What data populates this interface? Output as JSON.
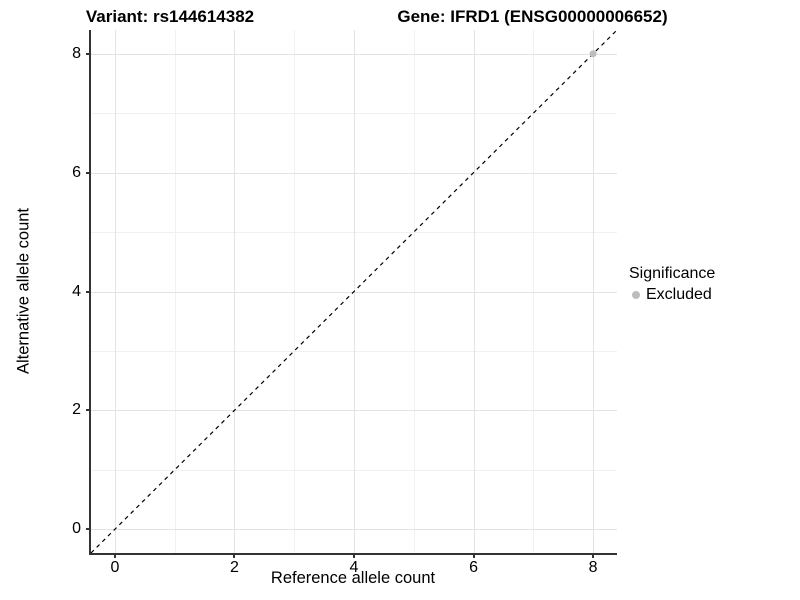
{
  "chart_data": {
    "type": "scatter",
    "title_left": "Variant: rs144614382",
    "title_right": "Gene: IFRD1 (ENSG00000006652)",
    "xlabel": "Reference allele count",
    "ylabel": "Alternative allele count",
    "xlim": [
      -0.4,
      8.4
    ],
    "ylim": [
      -0.4,
      8.4
    ],
    "major_ticks": [
      0,
      2,
      4,
      6,
      8
    ],
    "minor_gridlines": [
      1,
      3,
      5,
      7
    ],
    "grid": "major and minor gridlines, white panel background",
    "axis_line_color": "#333333",
    "legend": {
      "title": "Significance",
      "position": "right",
      "items": [
        {
          "label": "Excluded",
          "color": "#bdbdbd"
        }
      ]
    },
    "series": [
      {
        "name": "Excluded",
        "color": "#bdbdbd",
        "points": [
          {
            "x": 8,
            "y": 8
          }
        ]
      }
    ],
    "reference_line": {
      "type": "identity y=x",
      "style": "dashed",
      "color": "#000000",
      "dash": "4 4"
    }
  }
}
